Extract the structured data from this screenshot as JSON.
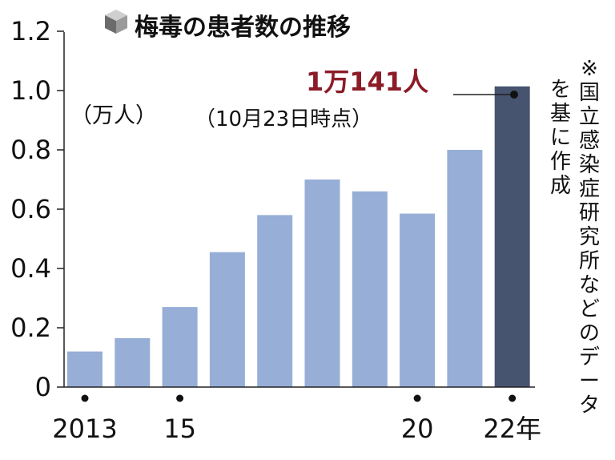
{
  "chart_data": {
    "type": "bar",
    "title": "梅毒の患者数の推移",
    "ylabel": "（万人）",
    "xlabel": "",
    "ylim": [
      0,
      1.2
    ],
    "grid": false,
    "y_ticks": [
      "0",
      "0.2",
      "0.4",
      "0.6",
      "0.8",
      "1.0",
      "1.2"
    ],
    "categories": [
      "2013",
      "2014",
      "2015",
      "2016",
      "2017",
      "2018",
      "2019",
      "2020",
      "2021",
      "2022"
    ],
    "x_tick_labels": [
      {
        "index": 0,
        "label": "2013"
      },
      {
        "index": 2,
        "label": "15"
      },
      {
        "index": 7,
        "label": "20"
      },
      {
        "index": 9,
        "label": "22年"
      }
    ],
    "values": [
      0.12,
      0.165,
      0.27,
      0.455,
      0.58,
      0.7,
      0.66,
      0.585,
      0.8,
      1.0141
    ],
    "highlight_index": 9,
    "annotation": {
      "value_label": "1万141人",
      "note": "（10月23日時点）"
    },
    "source_note": "※国立感染症研究所などのデータを基に作成",
    "colors": {
      "bar": "#97aed7",
      "highlight_bar": "#46546f",
      "annotation_value": "#8c1c28",
      "axis": "#222222"
    }
  }
}
